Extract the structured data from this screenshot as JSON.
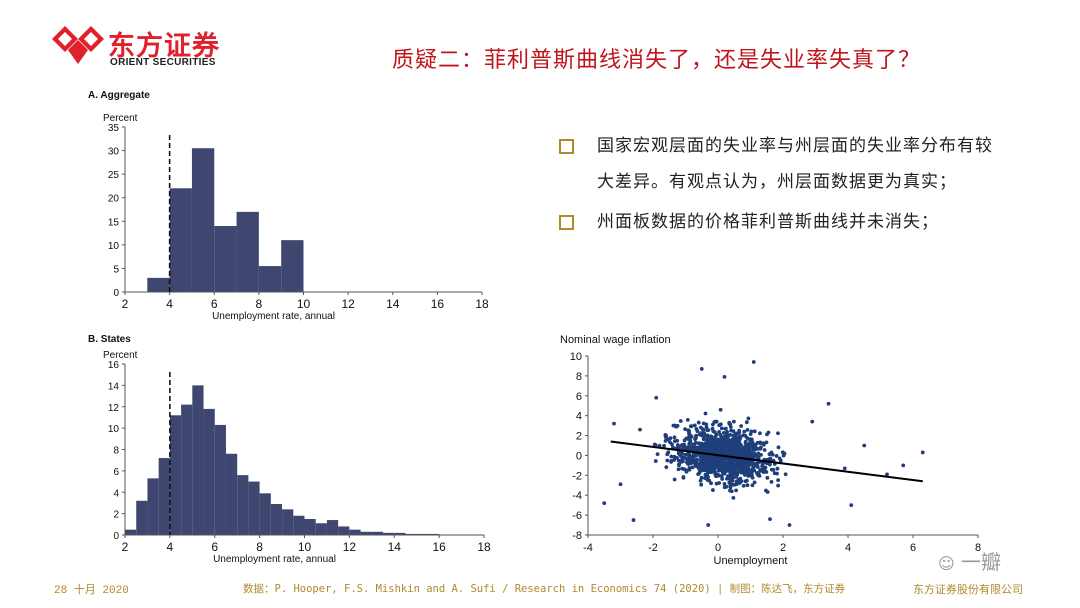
{
  "brand": {
    "name_cn": "东方证券",
    "name_en": "ORIENT SECURITIES",
    "logo_color": "#e0202a"
  },
  "slide_title": "质疑二：菲利普斯曲线消失了，还是失业率失真了？",
  "bullets": [
    "国家宏观层面的失业率与州层面的失业率分布有较大差异。有观点认为，州层面数据更为真实；",
    "州面板数据的价格菲利普斯曲线并未消失；"
  ],
  "footer": {
    "date": "28 十月 2020",
    "source": "数据：P. Hooper, F.S. Mishkin and A. Sufi / Research in Economics 74 (2020)  | 制图：陈达飞，东方证券",
    "company": "东方证券股份有限公司"
  },
  "watermark": "一瓣",
  "colors": {
    "bar": "#3f4770",
    "point": "#1f3f7a",
    "title": "#c0141c",
    "accent": "#b08a2a"
  },
  "chart_data": [
    {
      "type": "bar",
      "panel_title": "A.  Aggregate",
      "ylabel": "Percent",
      "xlabel": "Unemployment rate, annual",
      "bin_width": 1,
      "bin_starts": [
        3,
        4,
        5,
        6,
        7,
        8,
        9
      ],
      "values": [
        3,
        22,
        30.5,
        14,
        17,
        5.5,
        11
      ],
      "xlim": [
        2,
        18
      ],
      "ylim": [
        0,
        35
      ],
      "xticks": [
        2,
        4,
        6,
        8,
        10,
        12,
        14,
        16,
        18
      ],
      "yticks": [
        0,
        5,
        10,
        15,
        20,
        25,
        30,
        35
      ],
      "reference_line_x": 4
    },
    {
      "type": "bar",
      "panel_title": "B.  States",
      "ylabel": "Percent",
      "xlabel": "Unemployment rate, annual",
      "bin_width": 0.5,
      "bin_starts": [
        2.0,
        2.5,
        3.0,
        3.5,
        4.0,
        4.5,
        5.0,
        5.5,
        6.0,
        6.5,
        7.0,
        7.5,
        8.0,
        8.5,
        9.0,
        9.5,
        10.0,
        10.5,
        11.0,
        11.5,
        12.0,
        12.5,
        13.0,
        13.5,
        14.0,
        14.5,
        15.0,
        15.5,
        16.0,
        16.5,
        17.0,
        17.5
      ],
      "values": [
        0.5,
        3.2,
        5.3,
        7.2,
        11.2,
        12.2,
        14.0,
        11.8,
        10.3,
        7.6,
        5.6,
        5.0,
        3.9,
        2.9,
        2.4,
        1.8,
        1.5,
        1.1,
        1.4,
        0.8,
        0.5,
        0.3,
        0.3,
        0.2,
        0.2,
        0.1,
        0.1,
        0.1,
        0.05,
        0.05,
        0.05,
        0.05
      ],
      "xlim": [
        2,
        18
      ],
      "ylim": [
        0,
        16
      ],
      "xticks": [
        2,
        4,
        6,
        8,
        10,
        12,
        14,
        16,
        18
      ],
      "yticks": [
        0,
        2,
        4,
        6,
        8,
        10,
        12,
        14,
        16
      ],
      "reference_line_x": 4
    },
    {
      "type": "scatter",
      "ylabel": "Nominal wage inflation",
      "xlabel": "Unemployment",
      "xlim": [
        -4,
        8
      ],
      "ylim": [
        -8,
        10
      ],
      "xticks": [
        -4,
        -2,
        0,
        2,
        4,
        6,
        8
      ],
      "yticks": [
        -8,
        -6,
        -4,
        -2,
        0,
        2,
        4,
        6,
        8,
        10
      ],
      "fit_line": {
        "x": [
          -3.3,
          6.3
        ],
        "y": [
          1.4,
          -2.6
        ]
      },
      "outliers": [
        {
          "x": -3.5,
          "y": -4.8
        },
        {
          "x": 6.3,
          "y": 0.3
        },
        {
          "x": 3.4,
          "y": 5.2
        },
        {
          "x": 1.1,
          "y": 9.4
        },
        {
          "x": -0.5,
          "y": 8.7
        },
        {
          "x": -2.6,
          "y": -6.5
        },
        {
          "x": 5.2,
          "y": -1.9
        },
        {
          "x": 4.1,
          "y": -5.0
        },
        {
          "x": -3.2,
          "y": 3.2
        },
        {
          "x": 4.5,
          "y": 1.0
        },
        {
          "x": -1.9,
          "y": 5.8
        },
        {
          "x": 2.2,
          "y": -7.0
        },
        {
          "x": 0.2,
          "y": 7.9
        },
        {
          "x": -3.0,
          "y": -2.9
        },
        {
          "x": 3.9,
          "y": -1.3
        },
        {
          "x": -0.3,
          "y": -7.0
        },
        {
          "x": 2.9,
          "y": 3.4
        },
        {
          "x": 5.7,
          "y": -1.0
        },
        {
          "x": -2.4,
          "y": 2.6
        },
        {
          "x": 1.6,
          "y": -6.4
        }
      ],
      "cluster": {
        "n": 1200,
        "x_mean": 0.1,
        "x_sd": 0.95,
        "y_sd": 1.8,
        "seed": 7
      }
    }
  ]
}
